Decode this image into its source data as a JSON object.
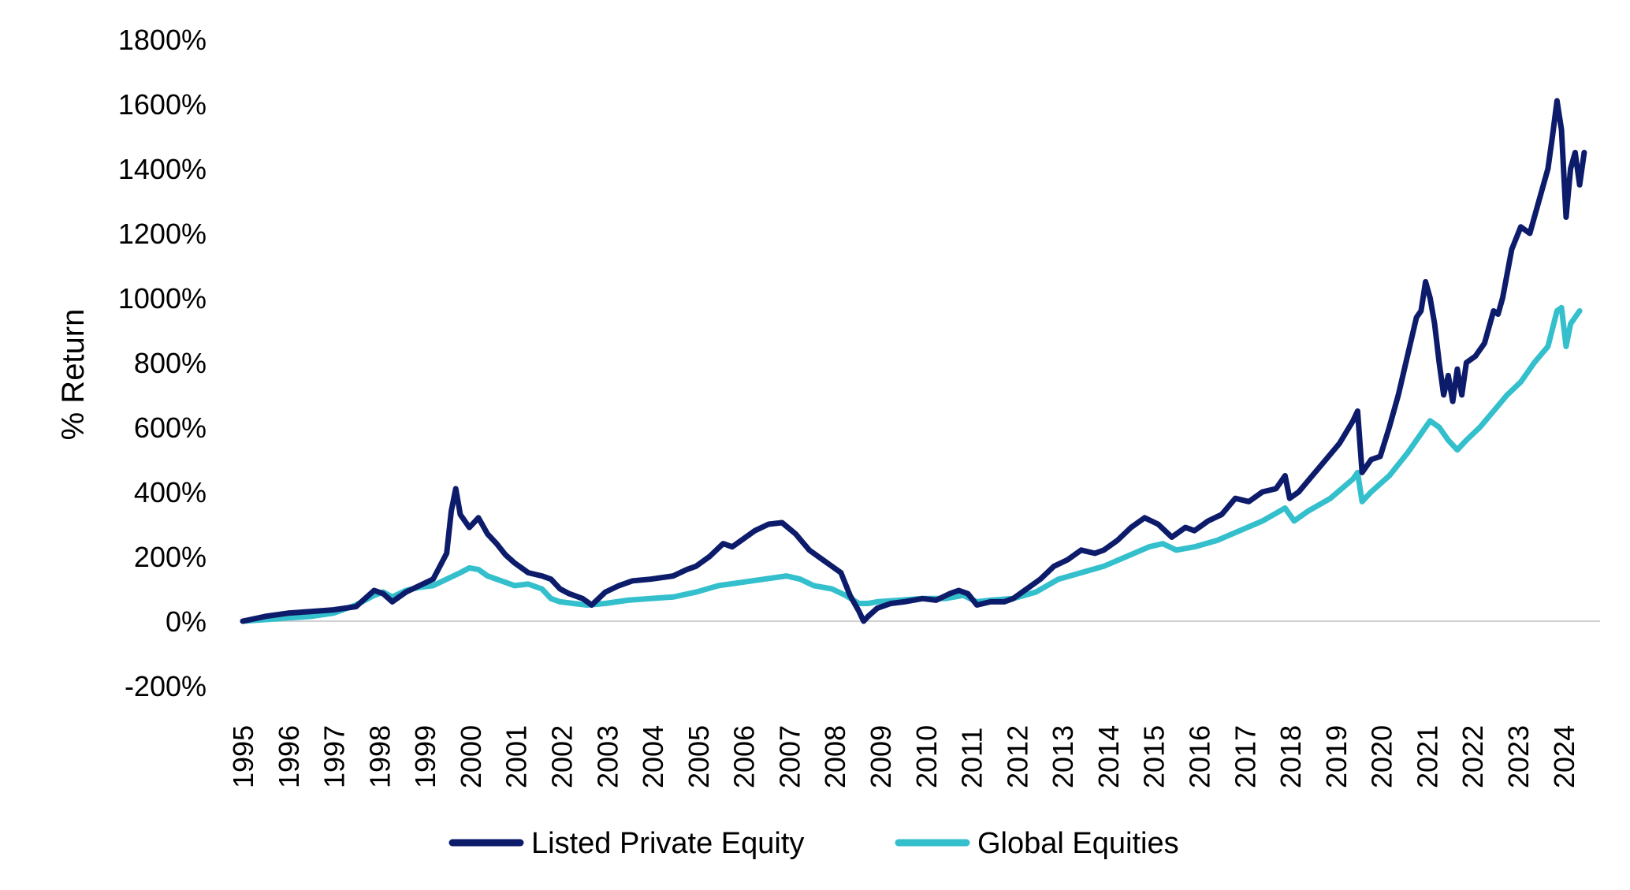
{
  "chart_data": {
    "type": "line",
    "title": "",
    "xlabel": "",
    "ylabel": "% Return",
    "ylim": [
      -200,
      1800
    ],
    "yticks": [
      "1800%",
      "1600%",
      "1400%",
      "1200%",
      "1000%",
      "800%",
      "600%",
      "400%",
      "200%",
      "0%",
      "-200%"
    ],
    "ytick_values": [
      1800,
      1600,
      1400,
      1200,
      1000,
      800,
      600,
      400,
      200,
      0,
      -200
    ],
    "xlim": [
      1995.0,
      2024.95
    ],
    "xticks": [
      "1995",
      "1996",
      "1997",
      "1998",
      "1999",
      "2000",
      "2001",
      "2002",
      "2003",
      "2004",
      "2005",
      "2006",
      "2007",
      "2008",
      "2009",
      "2010",
      "2011",
      "2012",
      "2013",
      "2014",
      "2015",
      "2016",
      "2017",
      "2018",
      "2019",
      "2020",
      "2021",
      "2022",
      "2023",
      "2024"
    ],
    "grid": false,
    "legend_position": "bottom",
    "series": [
      {
        "name": "Listed Private Equity",
        "color": "#0d1b6b",
        "points": [
          [
            1995.0,
            0
          ],
          [
            1995.5,
            15
          ],
          [
            1996.0,
            25
          ],
          [
            1996.5,
            30
          ],
          [
            1997.0,
            35
          ],
          [
            1997.5,
            45
          ],
          [
            1997.9,
            95
          ],
          [
            1998.1,
            85
          ],
          [
            1998.3,
            60
          ],
          [
            1998.6,
            90
          ],
          [
            1998.9,
            110
          ],
          [
            1999.2,
            130
          ],
          [
            1999.5,
            210
          ],
          [
            1999.6,
            340
          ],
          [
            1999.7,
            410
          ],
          [
            1999.8,
            330
          ],
          [
            2000.0,
            290
          ],
          [
            2000.2,
            320
          ],
          [
            2000.4,
            270
          ],
          [
            2000.6,
            240
          ],
          [
            2000.8,
            205
          ],
          [
            2001.0,
            180
          ],
          [
            2001.3,
            150
          ],
          [
            2001.6,
            140
          ],
          [
            2001.8,
            130
          ],
          [
            2002.0,
            100
          ],
          [
            2002.2,
            85
          ],
          [
            2002.5,
            70
          ],
          [
            2002.7,
            50
          ],
          [
            2003.0,
            90
          ],
          [
            2003.3,
            110
          ],
          [
            2003.6,
            125
          ],
          [
            2004.0,
            130
          ],
          [
            2004.5,
            140
          ],
          [
            2004.8,
            160
          ],
          [
            2005.0,
            170
          ],
          [
            2005.3,
            200
          ],
          [
            2005.6,
            240
          ],
          [
            2005.8,
            230
          ],
          [
            2006.0,
            250
          ],
          [
            2006.3,
            280
          ],
          [
            2006.6,
            300
          ],
          [
            2006.9,
            305
          ],
          [
            2007.2,
            270
          ],
          [
            2007.5,
            220
          ],
          [
            2007.8,
            190
          ],
          [
            2008.0,
            170
          ],
          [
            2008.2,
            150
          ],
          [
            2008.4,
            80
          ],
          [
            2008.6,
            30
          ],
          [
            2008.7,
            0
          ],
          [
            2008.8,
            15
          ],
          [
            2009.0,
            40
          ],
          [
            2009.3,
            55
          ],
          [
            2009.6,
            60
          ],
          [
            2010.0,
            70
          ],
          [
            2010.3,
            65
          ],
          [
            2010.6,
            85
          ],
          [
            2010.8,
            95
          ],
          [
            2011.0,
            85
          ],
          [
            2011.2,
            50
          ],
          [
            2011.5,
            60
          ],
          [
            2011.8,
            60
          ],
          [
            2012.0,
            70
          ],
          [
            2012.3,
            100
          ],
          [
            2012.6,
            130
          ],
          [
            2012.9,
            170
          ],
          [
            2013.2,
            190
          ],
          [
            2013.5,
            220
          ],
          [
            2013.8,
            210
          ],
          [
            2014.0,
            220
          ],
          [
            2014.3,
            250
          ],
          [
            2014.6,
            290
          ],
          [
            2014.9,
            320
          ],
          [
            2015.2,
            300
          ],
          [
            2015.5,
            260
          ],
          [
            2015.8,
            290
          ],
          [
            2016.0,
            280
          ],
          [
            2016.3,
            310
          ],
          [
            2016.6,
            330
          ],
          [
            2016.9,
            380
          ],
          [
            2017.2,
            370
          ],
          [
            2017.5,
            400
          ],
          [
            2017.8,
            410
          ],
          [
            2018.0,
            450
          ],
          [
            2018.1,
            380
          ],
          [
            2018.3,
            400
          ],
          [
            2018.6,
            450
          ],
          [
            2018.9,
            500
          ],
          [
            2019.2,
            550
          ],
          [
            2019.5,
            620
          ],
          [
            2019.6,
            650
          ],
          [
            2019.7,
            460
          ],
          [
            2019.9,
            500
          ],
          [
            2020.1,
            510
          ],
          [
            2020.3,
            600
          ],
          [
            2020.5,
            700
          ],
          [
            2020.7,
            820
          ],
          [
            2020.9,
            940
          ],
          [
            2021.0,
            960
          ],
          [
            2021.1,
            1050
          ],
          [
            2021.2,
            1000
          ],
          [
            2021.3,
            920
          ],
          [
            2021.4,
            800
          ],
          [
            2021.5,
            700
          ],
          [
            2021.6,
            760
          ],
          [
            2021.7,
            680
          ],
          [
            2021.8,
            780
          ],
          [
            2021.9,
            700
          ],
          [
            2022.0,
            800
          ],
          [
            2022.2,
            820
          ],
          [
            2022.4,
            860
          ],
          [
            2022.6,
            960
          ],
          [
            2022.7,
            950
          ],
          [
            2022.8,
            1000
          ],
          [
            2023.0,
            1150
          ],
          [
            2023.2,
            1220
          ],
          [
            2023.4,
            1200
          ],
          [
            2023.6,
            1300
          ],
          [
            2023.8,
            1400
          ],
          [
            2023.9,
            1500
          ],
          [
            2024.0,
            1610
          ],
          [
            2024.1,
            1520
          ],
          [
            2024.2,
            1250
          ],
          [
            2024.3,
            1400
          ],
          [
            2024.4,
            1450
          ],
          [
            2024.5,
            1350
          ],
          [
            2024.6,
            1450
          ]
        ]
      },
      {
        "name": "Global Equities",
        "color": "#33bfcc",
        "points": [
          [
            1995.0,
            0
          ],
          [
            1995.5,
            5
          ],
          [
            1996.0,
            10
          ],
          [
            1996.5,
            15
          ],
          [
            1997.0,
            25
          ],
          [
            1997.5,
            50
          ],
          [
            1997.9,
            80
          ],
          [
            1998.1,
            90
          ],
          [
            1998.3,
            75
          ],
          [
            1998.6,
            95
          ],
          [
            1998.9,
            105
          ],
          [
            1999.2,
            110
          ],
          [
            1999.5,
            130
          ],
          [
            1999.8,
            150
          ],
          [
            2000.0,
            165
          ],
          [
            2000.2,
            160
          ],
          [
            2000.4,
            140
          ],
          [
            2000.6,
            130
          ],
          [
            2000.8,
            120
          ],
          [
            2001.0,
            110
          ],
          [
            2001.3,
            115
          ],
          [
            2001.6,
            100
          ],
          [
            2001.8,
            70
          ],
          [
            2002.0,
            60
          ],
          [
            2002.3,
            55
          ],
          [
            2002.6,
            50
          ],
          [
            2003.0,
            55
          ],
          [
            2003.5,
            65
          ],
          [
            2004.0,
            70
          ],
          [
            2004.5,
            75
          ],
          [
            2005.0,
            90
          ],
          [
            2005.5,
            110
          ],
          [
            2006.0,
            120
          ],
          [
            2006.5,
            130
          ],
          [
            2007.0,
            140
          ],
          [
            2007.3,
            130
          ],
          [
            2007.6,
            110
          ],
          [
            2008.0,
            100
          ],
          [
            2008.3,
            80
          ],
          [
            2008.6,
            55
          ],
          [
            2008.8,
            55
          ],
          [
            2009.0,
            60
          ],
          [
            2009.5,
            65
          ],
          [
            2010.0,
            70
          ],
          [
            2010.5,
            70
          ],
          [
            2010.9,
            80
          ],
          [
            2011.2,
            60
          ],
          [
            2011.5,
            65
          ],
          [
            2012.0,
            70
          ],
          [
            2012.5,
            90
          ],
          [
            2013.0,
            130
          ],
          [
            2013.5,
            150
          ],
          [
            2014.0,
            170
          ],
          [
            2014.5,
            200
          ],
          [
            2015.0,
            230
          ],
          [
            2015.3,
            240
          ],
          [
            2015.6,
            220
          ],
          [
            2016.0,
            230
          ],
          [
            2016.5,
            250
          ],
          [
            2017.0,
            280
          ],
          [
            2017.5,
            310
          ],
          [
            2018.0,
            350
          ],
          [
            2018.2,
            310
          ],
          [
            2018.5,
            340
          ],
          [
            2019.0,
            380
          ],
          [
            2019.5,
            440
          ],
          [
            2019.6,
            460
          ],
          [
            2019.7,
            370
          ],
          [
            2019.9,
            400
          ],
          [
            2020.3,
            450
          ],
          [
            2020.7,
            520
          ],
          [
            2021.0,
            580
          ],
          [
            2021.2,
            620
          ],
          [
            2021.4,
            600
          ],
          [
            2021.6,
            560
          ],
          [
            2021.8,
            530
          ],
          [
            2022.0,
            560
          ],
          [
            2022.3,
            600
          ],
          [
            2022.6,
            650
          ],
          [
            2022.9,
            700
          ],
          [
            2023.2,
            740
          ],
          [
            2023.5,
            800
          ],
          [
            2023.8,
            850
          ],
          [
            2024.0,
            960
          ],
          [
            2024.1,
            970
          ],
          [
            2024.2,
            850
          ],
          [
            2024.3,
            920
          ],
          [
            2024.5,
            960
          ]
        ]
      }
    ]
  }
}
